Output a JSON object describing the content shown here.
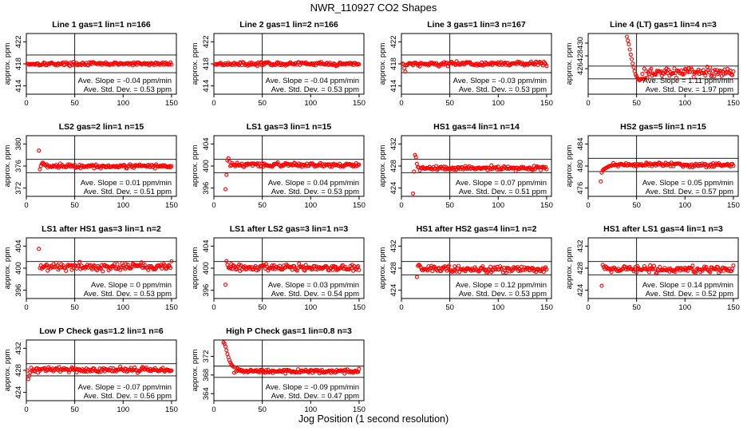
{
  "figure": {
    "title": "NWR_110927  CO2 Shapes",
    "xlabel": "Jog Position (1 second resolution)",
    "ylabel": "approx. ppm",
    "slope_label": "Ave. Slope =",
    "slope_unit": "ppm/min",
    "std_label": "Ave. Std. Dev. =",
    "std_unit": "ppm",
    "marker_color": "#ff0000",
    "marker": "open-circle"
  },
  "chart_data": [
    {
      "type": "scatter",
      "title": "Line 1 gas=1 lin=1 n=166",
      "slope": "-0.04",
      "std": "0.53",
      "xlim": [
        0,
        155
      ],
      "xticks": [
        0,
        50,
        100,
        150
      ],
      "ylim": [
        412.5,
        423.5
      ],
      "yticks": [
        414,
        418,
        422
      ],
      "ref_lines": [
        416.4,
        419.6
      ],
      "vline": 50,
      "series": {
        "x_start": 1,
        "x_end": 150,
        "base": 418,
        "noise": 0.15,
        "transient": []
      }
    },
    {
      "type": "scatter",
      "title": "Line 2 gas=1 lin=2 n=166",
      "slope": "-0.04",
      "std": "0.53",
      "xlim": [
        0,
        155
      ],
      "xticks": [
        0,
        50,
        100,
        150
      ],
      "ylim": [
        412.5,
        423.5
      ],
      "yticks": [
        414,
        418,
        422
      ],
      "ref_lines": [
        416.4,
        419.6
      ],
      "vline": 50,
      "series": {
        "x_start": 1,
        "x_end": 150,
        "base": 418,
        "noise": 0.15,
        "transient": []
      }
    },
    {
      "type": "scatter",
      "title": "Line 3 gas=1 lin=3 n=167",
      "slope": "-0.03",
      "std": "0.53",
      "xlim": [
        0,
        155
      ],
      "xticks": [
        0,
        50,
        100,
        150
      ],
      "ylim": [
        412.5,
        423.5
      ],
      "yticks": [
        414,
        418,
        422
      ],
      "ref_lines": [
        416.4,
        419.6
      ],
      "vline": 50,
      "series": {
        "x_start": 1,
        "x_end": 150,
        "base": 418,
        "noise": 0.2,
        "transient": [
          [
            3,
            417.2
          ],
          [
            4,
            416.6
          ],
          [
            5,
            417.8
          ]
        ]
      }
    },
    {
      "type": "scatter",
      "title": "Line 4 (LT) gas=1 lin=4 n=3",
      "slope": "1.11",
      "std": "1.97",
      "xlim": [
        0,
        155
      ],
      "xticks": [
        0,
        50,
        100,
        150
      ],
      "ylim": [
        422,
        431.5
      ],
      "yticks": [
        426,
        428,
        430
      ],
      "ref_lines": [
        424.4,
        426.4
      ],
      "vline": 50,
      "series": {
        "x_start": 40,
        "x_end": 150,
        "base": 425.4,
        "noise": 0.35,
        "transient": [
          [
            40,
            431
          ],
          [
            41,
            430.4
          ],
          [
            42,
            429.8
          ],
          [
            43,
            429
          ],
          [
            44,
            428.2
          ],
          [
            45,
            427.5
          ],
          [
            46,
            426.8
          ],
          [
            47,
            426.2
          ],
          [
            48,
            425.6
          ],
          [
            49,
            425.1
          ],
          [
            50,
            424.8
          ],
          [
            51,
            424.5
          ],
          [
            52,
            424.3
          ],
          [
            53,
            424.2
          ],
          [
            54,
            424.3
          ],
          [
            55,
            424.4
          ],
          [
            57,
            424.4
          ],
          [
            59,
            424.5
          ],
          [
            61,
            424.6
          ]
        ]
      }
    },
    {
      "type": "scatter",
      "title": "LS2 gas=2 lin=1 n=15",
      "slope": "0.01",
      "std": "0.51",
      "xlim": [
        0,
        155
      ],
      "xticks": [
        0,
        50,
        100,
        150
      ],
      "ylim": [
        370.5,
        381.5
      ],
      "yticks": [
        372,
        376,
        380
      ],
      "ref_lines": [
        374.8,
        377.2
      ],
      "vline": 50,
      "series": {
        "x_start": 15,
        "x_end": 150,
        "base": 376,
        "noise": 0.18,
        "transient": [
          [
            13,
            378.8
          ],
          [
            14,
            375.4
          ],
          [
            15,
            376
          ],
          [
            16,
            376.4
          ],
          [
            17,
            376.6
          ],
          [
            18,
            376.4
          ],
          [
            19,
            376.2
          ]
        ]
      }
    },
    {
      "type": "scatter",
      "title": "LS1 gas=3 lin=1 n=15",
      "slope": "0.04",
      "std": "0.53",
      "xlim": [
        0,
        155
      ],
      "xticks": [
        0,
        50,
        100,
        150
      ],
      "ylim": [
        394.5,
        405.5
      ],
      "yticks": [
        396,
        400,
        404
      ],
      "ref_lines": [
        398.8,
        401.2
      ],
      "vline": 50,
      "series": {
        "x_start": 15,
        "x_end": 150,
        "base": 400.2,
        "noise": 0.18,
        "transient": [
          [
            12,
            395.8
          ],
          [
            13,
            398.4
          ],
          [
            14,
            401
          ],
          [
            15,
            401.4
          ],
          [
            16,
            400.8
          ],
          [
            17,
            400
          ]
        ]
      }
    },
    {
      "type": "scatter",
      "title": "HS1 gas=4 lin=1 n=14",
      "slope": "0.07",
      "std": "0.51",
      "xlim": [
        0,
        155
      ],
      "xticks": [
        0,
        50,
        100,
        150
      ],
      "ylim": [
        422.5,
        433.5
      ],
      "yticks": [
        424,
        428,
        432
      ],
      "ref_lines": [
        426.8,
        429.2
      ],
      "vline": 50,
      "series": {
        "x_start": 14,
        "x_end": 150,
        "base": 427.6,
        "noise": 0.18,
        "transient": [
          [
            12,
            423
          ],
          [
            13,
            427
          ],
          [
            14,
            430
          ],
          [
            15,
            429.6
          ],
          [
            16,
            428.4
          ],
          [
            17,
            427.8
          ]
        ]
      }
    },
    {
      "type": "scatter",
      "title": "HS2 gas=5 lin=1 n=15",
      "slope": "0.05",
      "std": "0.57",
      "xlim": [
        0,
        155
      ],
      "xticks": [
        0,
        50,
        100,
        150
      ],
      "ylim": [
        474.5,
        485.5
      ],
      "yticks": [
        476,
        480,
        484
      ],
      "ref_lines": [
        479,
        481.4
      ],
      "vline": 50,
      "series": {
        "x_start": 26,
        "x_end": 150,
        "base": 480.2,
        "noise": 0.18,
        "transient": [
          [
            13,
            477.2
          ],
          [
            14,
            478.8
          ],
          [
            15,
            479.2
          ],
          [
            16,
            479.4
          ],
          [
            17,
            479.5
          ],
          [
            18,
            479.6
          ],
          [
            19,
            479.7
          ],
          [
            20,
            479.8
          ],
          [
            21,
            479.9
          ],
          [
            22,
            480
          ],
          [
            23,
            480
          ],
          [
            24,
            480.1
          ],
          [
            25,
            480.1
          ]
        ]
      }
    },
    {
      "type": "scatter",
      "title": "LS1 after HS1 gas=3 lin=1 n=2",
      "slope": "0",
      "std": "0.53",
      "xlim": [
        0,
        155
      ],
      "xticks": [
        0,
        50,
        100,
        150
      ],
      "ylim": [
        394.5,
        405.5
      ],
      "yticks": [
        396,
        400,
        404
      ],
      "ref_lines": [
        398.8,
        401.2
      ],
      "vline": 50,
      "series": {
        "x_start": 16,
        "x_end": 150,
        "base": 400.3,
        "noise": 0.35,
        "transient": [
          [
            13,
            403.5
          ],
          [
            14,
            400
          ],
          [
            15,
            400.5
          ]
        ]
      }
    },
    {
      "type": "scatter",
      "title": "LS1 after LS2 gas=3 lin=1 n=3",
      "slope": "0.03",
      "std": "0.54",
      "xlim": [
        0,
        155
      ],
      "xticks": [
        0,
        50,
        100,
        150
      ],
      "ylim": [
        394.5,
        405.5
      ],
      "yticks": [
        396,
        400,
        404
      ],
      "ref_lines": [
        398.8,
        401.2
      ],
      "vline": 50,
      "series": {
        "x_start": 15,
        "x_end": 150,
        "base": 400.1,
        "noise": 0.3,
        "transient": [
          [
            12,
            397
          ],
          [
            13,
            401.3
          ],
          [
            14,
            400.6
          ]
        ]
      }
    },
    {
      "type": "scatter",
      "title": "HS1 after HS2 gas=4 lin=1 n=2",
      "slope": "0.12",
      "std": "0.53",
      "xlim": [
        0,
        155
      ],
      "xticks": [
        0,
        50,
        100,
        150
      ],
      "ylim": [
        422.5,
        433.5
      ],
      "yticks": [
        424,
        428,
        432
      ],
      "ref_lines": [
        426.8,
        429.2
      ],
      "vline": 50,
      "series": {
        "x_start": 17,
        "x_end": 150,
        "base": 427.8,
        "noise": 0.3,
        "transient": [
          [
            16,
            426.4
          ],
          [
            17,
            428.4
          ],
          [
            18,
            428.6
          ],
          [
            19,
            428.5
          ]
        ]
      }
    },
    {
      "type": "scatter",
      "title": "HS1 after LS1 gas=4 lin=1 n=3",
      "slope": "0.14",
      "std": "0.52",
      "xlim": [
        0,
        155
      ],
      "xticks": [
        0,
        50,
        100,
        150
      ],
      "ylim": [
        422.5,
        433.5
      ],
      "yticks": [
        424,
        428,
        432
      ],
      "ref_lines": [
        426.8,
        429.2
      ],
      "vline": 50,
      "series": {
        "x_start": 16,
        "x_end": 150,
        "base": 427.8,
        "noise": 0.3,
        "transient": [
          [
            14,
            424.8
          ],
          [
            15,
            428.6
          ],
          [
            16,
            428.2
          ]
        ]
      }
    },
    {
      "type": "scatter",
      "title": "Low P Check gas=1.2 lin=1 n=6",
      "slope": "-0.07",
      "std": "0.56",
      "xlim": [
        0,
        155
      ],
      "xticks": [
        0,
        50,
        100,
        150
      ],
      "ylim": [
        422.5,
        433.5
      ],
      "yticks": [
        424,
        428,
        432
      ],
      "ref_lines": [
        427,
        429.2
      ],
      "vline": 50,
      "series": {
        "x_start": 1,
        "x_end": 150,
        "base": 428.1,
        "noise": 0.22,
        "transient": [
          [
            2,
            426.4
          ],
          [
            3,
            427
          ],
          [
            4,
            427.6
          ]
        ]
      }
    },
    {
      "type": "scatter",
      "title": "High P Check gas=1 lin=0.8 n=3",
      "slope": "-0.09",
      "std": "0.47",
      "xlim": [
        0,
        155
      ],
      "xticks": [
        0,
        50,
        100,
        150
      ],
      "ylim": [
        362.5,
        375.5
      ],
      "yticks": [
        364,
        368,
        372
      ],
      "ref_lines": [
        367.5,
        369.9
      ],
      "vline": 50,
      "series": {
        "x_start": 13,
        "x_end": 150,
        "base": 368.8,
        "noise": 0.2,
        "transient": [
          [
            10,
            375
          ],
          [
            11,
            374.7
          ],
          [
            12,
            374.1
          ],
          [
            13,
            373.3
          ],
          [
            14,
            372.5
          ],
          [
            15,
            371.8
          ],
          [
            16,
            371.2
          ],
          [
            17,
            370.7
          ],
          [
            18,
            370.3
          ],
          [
            19,
            370
          ],
          [
            20,
            369.8
          ],
          [
            22,
            369.6
          ],
          [
            24,
            369.4
          ],
          [
            26,
            369.2
          ],
          [
            28,
            369.1
          ],
          [
            30,
            369
          ]
        ]
      }
    }
  ]
}
